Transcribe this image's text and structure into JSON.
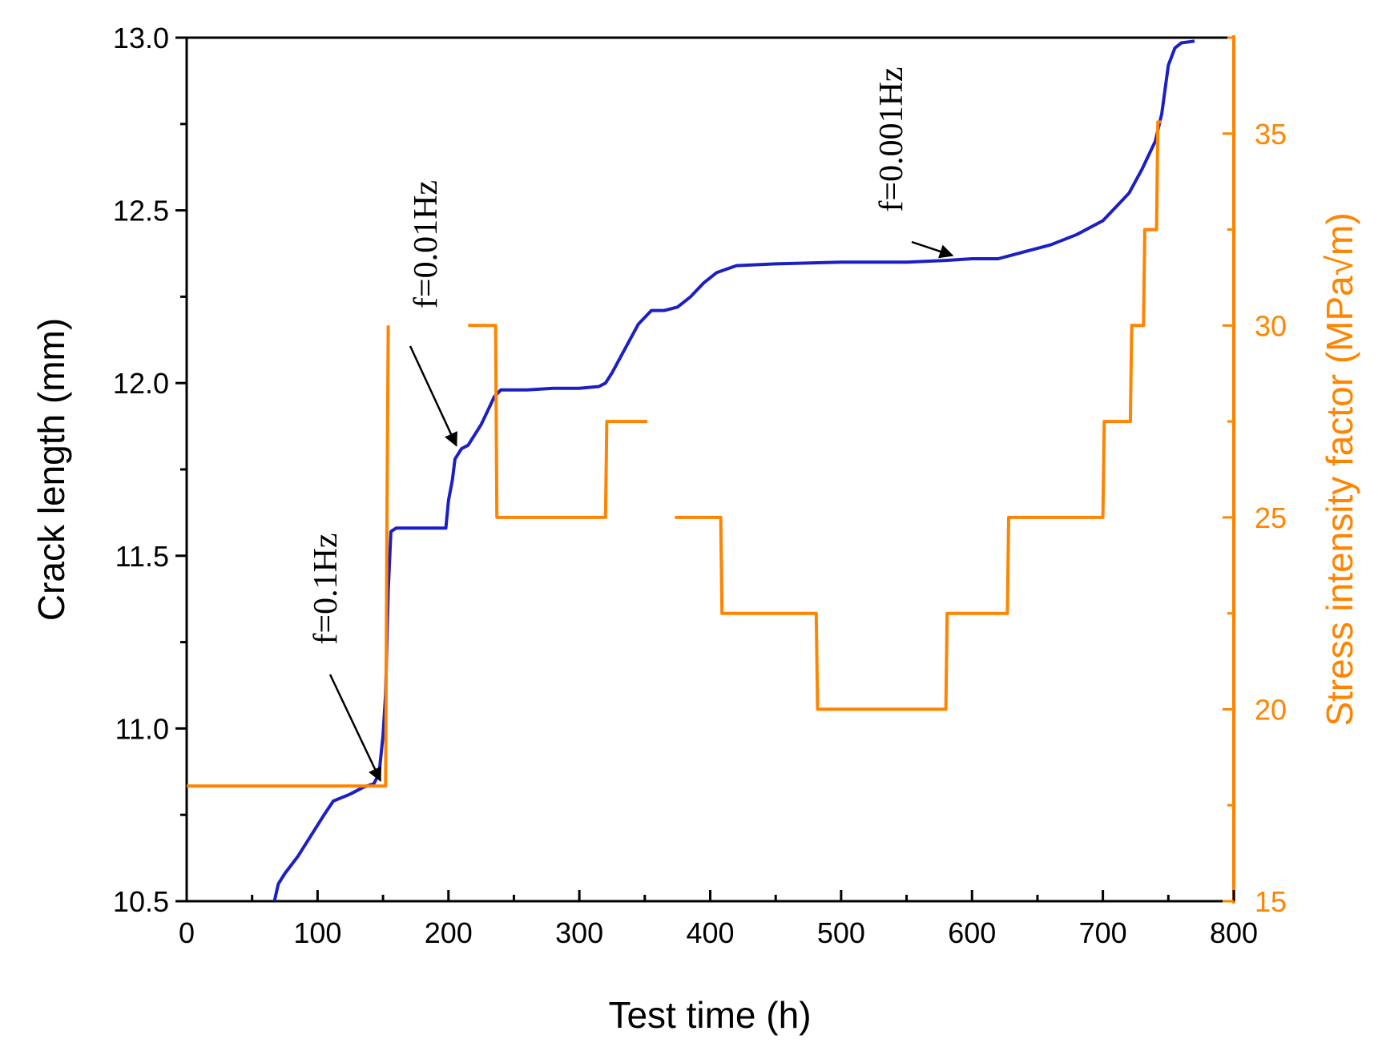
{
  "chart_data": {
    "type": "line",
    "xlabel": "Test time (h)",
    "ylabel": "Crack length (mm)",
    "y2label": "Stress intensity factor (MPa√m)",
    "xlim": [
      0,
      800
    ],
    "ylim": [
      10.5,
      13.0
    ],
    "y2lim": [
      15,
      37.5
    ],
    "xticks": [
      "0",
      "100",
      "200",
      "300",
      "400",
      "500",
      "600",
      "700",
      "800"
    ],
    "yticks": [
      "10.5",
      "11.0",
      "11.5",
      "12.0",
      "12.5",
      "13.0"
    ],
    "y2ticks": [
      "15",
      "20",
      "25",
      "30",
      "35"
    ],
    "colors": {
      "crack": "#1c1fc4",
      "stress": "#ff8400"
    },
    "series": [
      {
        "axis": "left",
        "x": [
          67,
          70,
          75,
          85,
          95,
          105,
          112,
          125,
          135,
          143,
          147,
          150,
          152,
          154,
          156,
          160,
          170,
          180,
          190,
          198,
          200,
          203,
          205,
          210,
          215,
          220,
          225,
          230,
          235,
          240,
          260,
          280,
          300,
          315,
          320,
          325,
          335,
          345,
          355,
          365,
          375,
          385,
          395,
          405,
          420,
          450,
          500,
          550,
          580,
          600,
          620,
          630,
          640,
          660,
          680,
          700,
          710,
          720,
          730,
          740,
          745,
          750,
          755,
          760,
          770
        ],
        "y": [
          10.5,
          10.55,
          10.58,
          10.63,
          10.69,
          10.75,
          10.79,
          10.81,
          10.83,
          10.84,
          10.87,
          10.98,
          11.1,
          11.4,
          11.57,
          11.58,
          11.58,
          11.58,
          11.58,
          11.58,
          11.66,
          11.72,
          11.78,
          11.81,
          11.82,
          11.85,
          11.88,
          11.92,
          11.96,
          11.98,
          11.98,
          11.985,
          11.985,
          11.99,
          12.0,
          12.03,
          12.1,
          12.17,
          12.21,
          12.21,
          12.22,
          12.25,
          12.29,
          12.32,
          12.34,
          12.345,
          12.35,
          12.35,
          12.355,
          12.36,
          12.36,
          12.37,
          12.38,
          12.4,
          12.43,
          12.47,
          12.51,
          12.55,
          12.62,
          12.7,
          12.78,
          12.92,
          12.97,
          12.985,
          12.99
        ]
      },
      {
        "axis": "right",
        "x": [
          0,
          152,
          153,
          154,
          154,
          215,
          236,
          237,
          320,
          321,
          352,
          null,
          373,
          408,
          409,
          481,
          482,
          580,
          581,
          627,
          628,
          700,
          701,
          721,
          722,
          731,
          732,
          741,
          742,
          745
        ],
        "y": [
          18,
          18,
          25,
          30,
          null,
          30,
          30,
          25,
          25,
          27.5,
          27.5,
          null,
          25,
          25,
          22.5,
          22.5,
          20,
          20,
          22.5,
          22.5,
          25,
          25,
          27.5,
          27.5,
          30,
          30,
          32.5,
          32.5,
          35.3,
          35.3
        ]
      }
    ],
    "annotations": [
      {
        "text": "f=0.1Hz",
        "x": 148,
        "y": 10.84
      },
      {
        "text": "f=0.01Hz",
        "x": 206,
        "y": 11.81
      },
      {
        "text": "f=0.001Hz",
        "x": 585,
        "y": 12.36
      }
    ]
  }
}
